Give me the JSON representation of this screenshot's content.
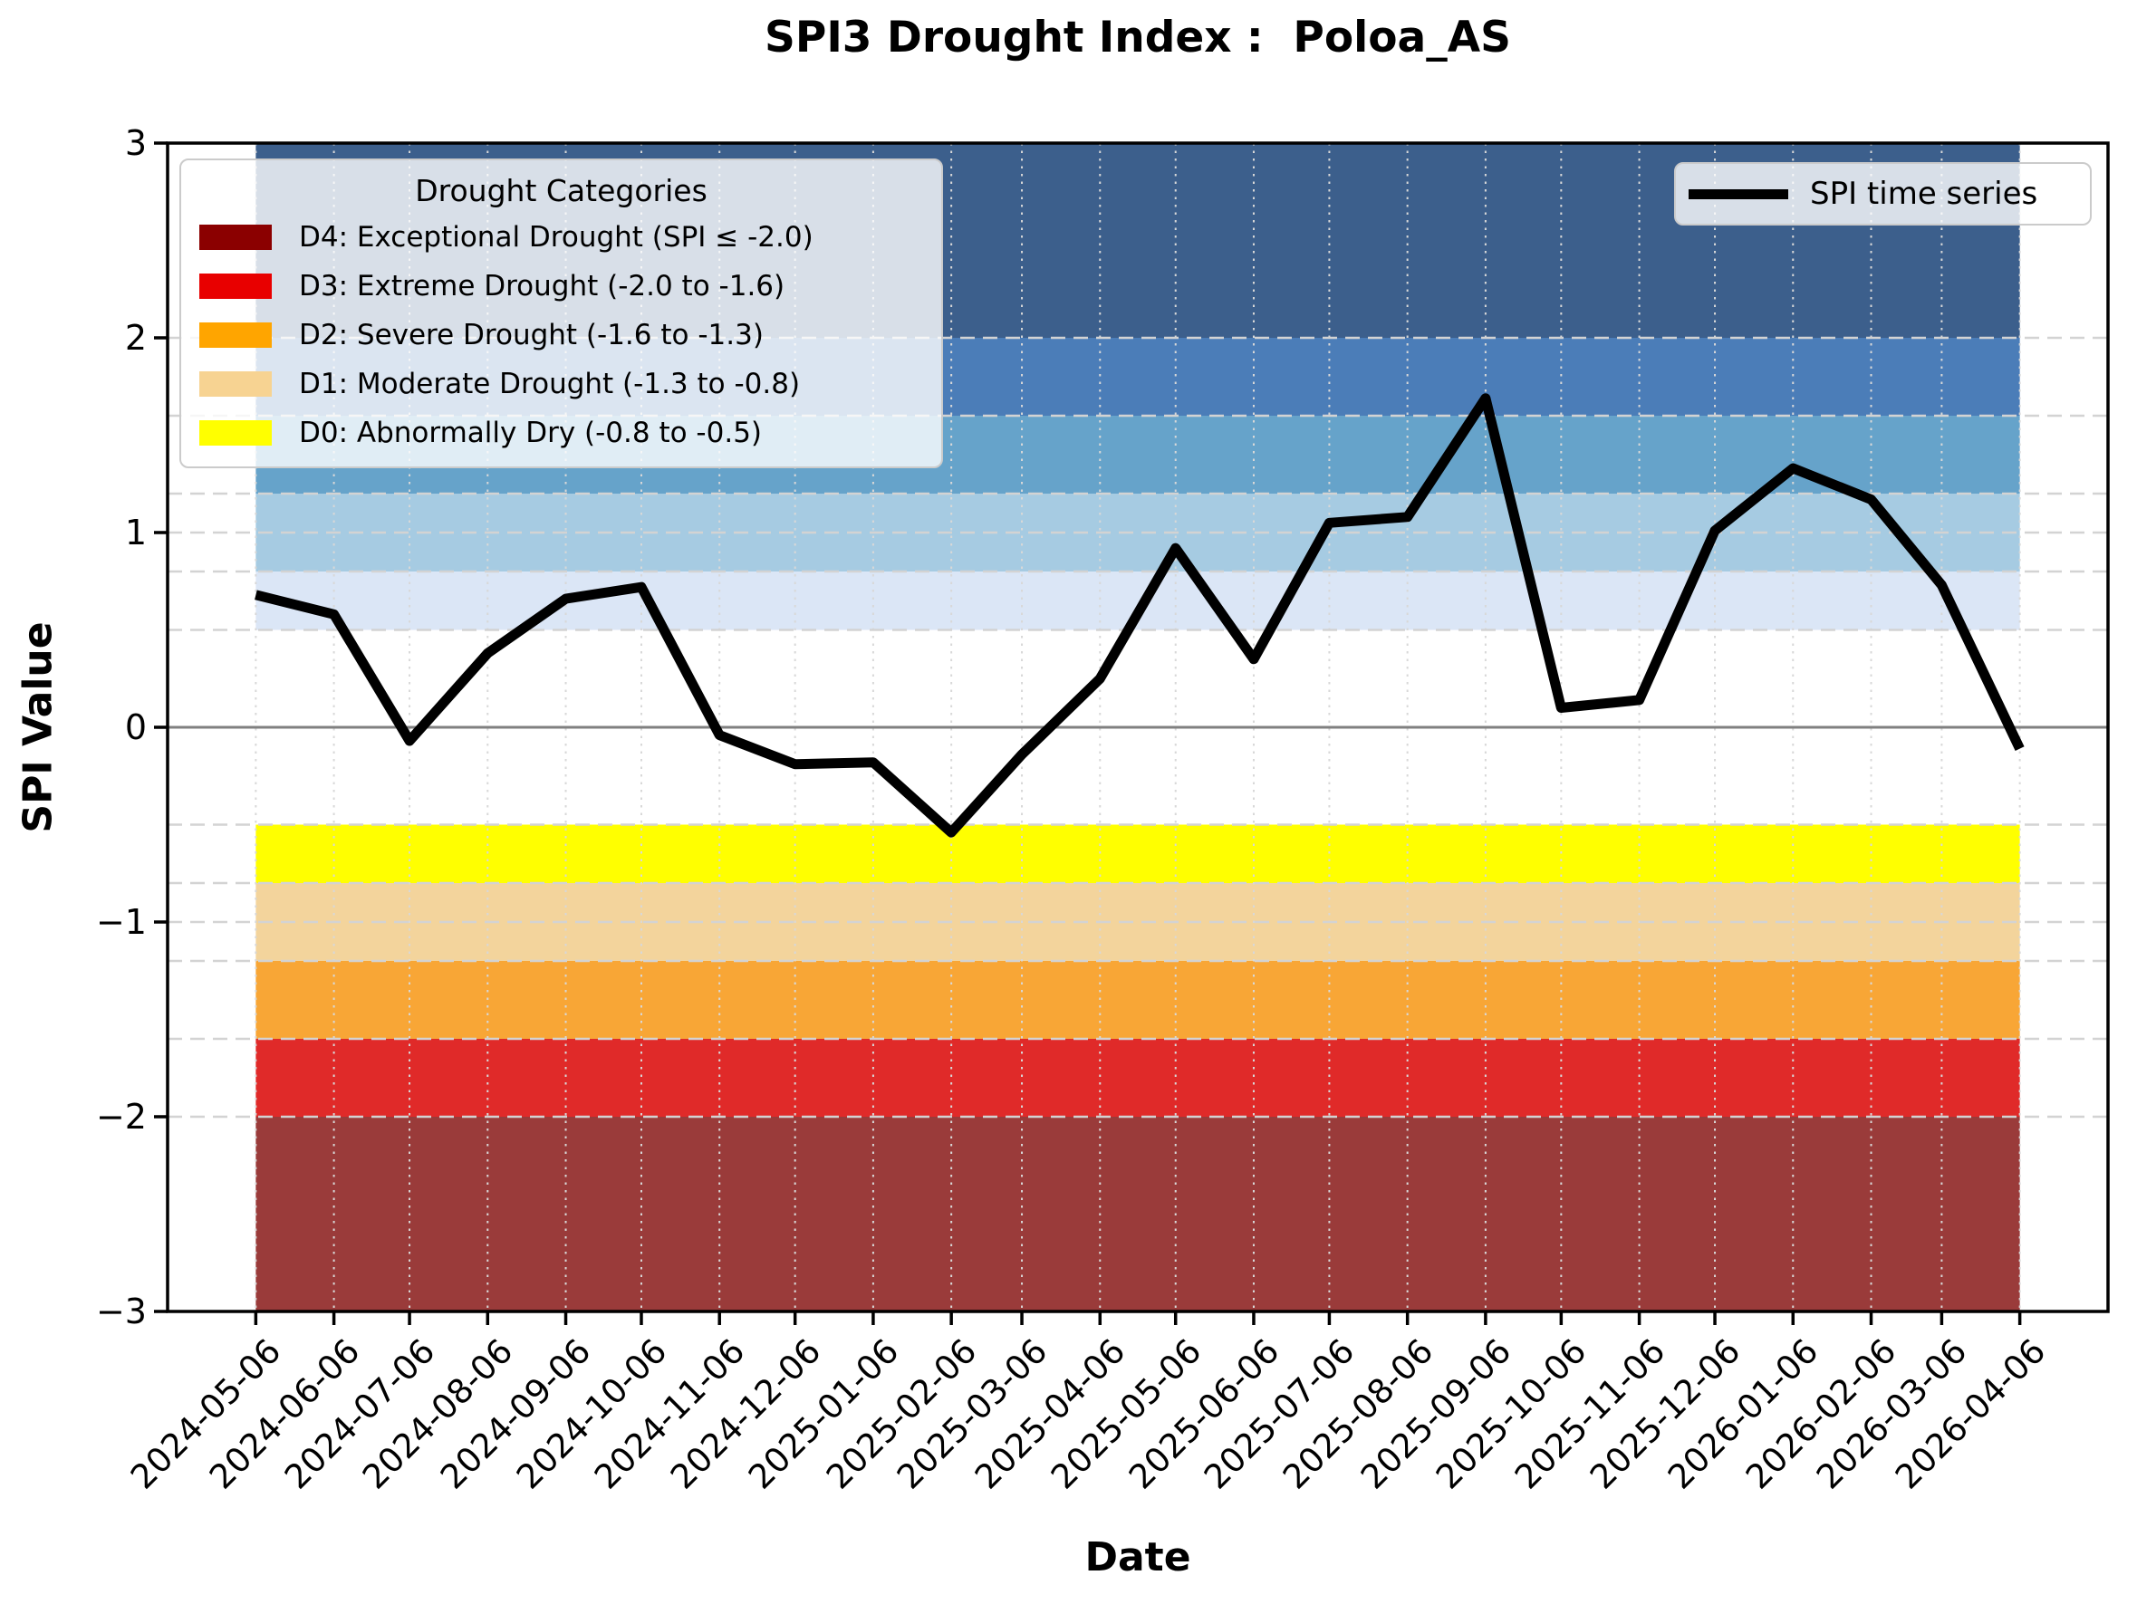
{
  "title": "SPI3 Drought Index :  Poloa_AS",
  "axes": {
    "x_label": "Date",
    "y_label": "SPI Value",
    "y_tick_labels": [
      "3",
      "2",
      "1",
      "0",
      "−1",
      "−2",
      "−3"
    ],
    "y_tick_values": [
      3,
      2,
      1,
      0,
      -1,
      -2,
      -3
    ],
    "x_tick_labels": [
      "2024-05-06",
      "2024-06-06",
      "2024-07-06",
      "2024-08-06",
      "2024-09-06",
      "2024-10-06",
      "2024-11-06",
      "2024-12-06",
      "2025-01-06",
      "2025-02-06",
      "2025-03-06",
      "2025-04-06",
      "2025-05-06",
      "2025-06-06",
      "2025-07-06",
      "2025-08-06",
      "2025-09-06",
      "2025-10-06",
      "2025-11-06",
      "2025-12-06",
      "2026-01-06",
      "2026-02-06",
      "2026-03-06",
      "2026-04-06"
    ]
  },
  "legend_categories": {
    "title": "Drought Categories",
    "entries": [
      {
        "label": "D4: Exceptional Drought (SPI ≤ -2.0)",
        "color": "#8B0000"
      },
      {
        "label": "D3: Extreme Drought (-2.0 to -1.6)",
        "color": "#E80000"
      },
      {
        "label": "D2: Severe Drought (-1.6 to -1.3)",
        "color": "#FFA500"
      },
      {
        "label": "D1: Moderate Drought (-1.3 to -0.8)",
        "color": "#F7D392"
      },
      {
        "label": "D0: Abnormally Dry (-0.8 to -0.5)",
        "color": "#FFFF00"
      }
    ]
  },
  "legend_series": {
    "label": "SPI time series",
    "line_color": "#000000"
  },
  "chart_data": {
    "type": "line",
    "title": "SPI3 Drought Index :  Poloa_AS",
    "xlabel": "Date",
    "ylabel": "SPI Value",
    "ylim": [
      -3,
      3
    ],
    "x_margin_days": 35,
    "grid": true,
    "legend_position": "upper left / upper right",
    "series": [
      {
        "name": "SPI time series",
        "color": "#000000",
        "line_width": 11,
        "x": [
          "2024-05-06",
          "2024-06-06",
          "2024-07-06",
          "2024-08-06",
          "2024-09-06",
          "2024-10-06",
          "2024-11-06",
          "2024-12-06",
          "2025-01-06",
          "2025-02-06",
          "2025-03-06",
          "2025-04-06",
          "2025-05-06",
          "2025-06-06",
          "2025-07-06",
          "2025-08-06",
          "2025-09-06",
          "2025-10-06",
          "2025-11-06",
          "2025-12-06",
          "2026-01-06",
          "2026-02-06",
          "2026-03-06",
          "2026-04-06"
        ],
        "values": [
          0.68,
          0.58,
          -0.07,
          0.38,
          0.66,
          0.72,
          -0.04,
          -0.19,
          -0.18,
          -0.54,
          -0.14,
          0.25,
          0.92,
          0.35,
          1.05,
          1.08,
          1.69,
          0.1,
          0.14,
          1.01,
          1.33,
          1.17,
          0.73,
          -0.11
        ]
      }
    ],
    "bands": [
      {
        "from": 2.0,
        "to": 3.0,
        "color": "#3C5F8C"
      },
      {
        "from": 1.6,
        "to": 2.0,
        "color": "#4B7DB8"
      },
      {
        "from": 1.2,
        "to": 1.6,
        "color": "#66A3CA"
      },
      {
        "from": 0.8,
        "to": 1.2,
        "color": "#A6CBE2"
      },
      {
        "from": 0.5,
        "to": 0.8,
        "color": "#DBE6F6"
      },
      {
        "from": -0.8,
        "to": -0.5,
        "color": "#FFFF00"
      },
      {
        "from": -1.2,
        "to": -0.8,
        "color": "#F3D49C"
      },
      {
        "from": -1.6,
        "to": -1.2,
        "color": "#F8A636"
      },
      {
        "from": -2.0,
        "to": -1.6,
        "color": "#E02A29"
      },
      {
        "from": -3.0,
        "to": -2.0,
        "color": "#9A3B3A"
      }
    ],
    "boundary_lines": [
      -2.0,
      -1.6,
      -1.2,
      -1.0,
      -0.8,
      -0.5,
      0.5,
      0.8,
      1.0,
      1.2,
      1.6,
      2.0
    ],
    "zero_line_color": "#808080",
    "grid_color": "#D3D3D3",
    "spine_color": "#000000"
  }
}
